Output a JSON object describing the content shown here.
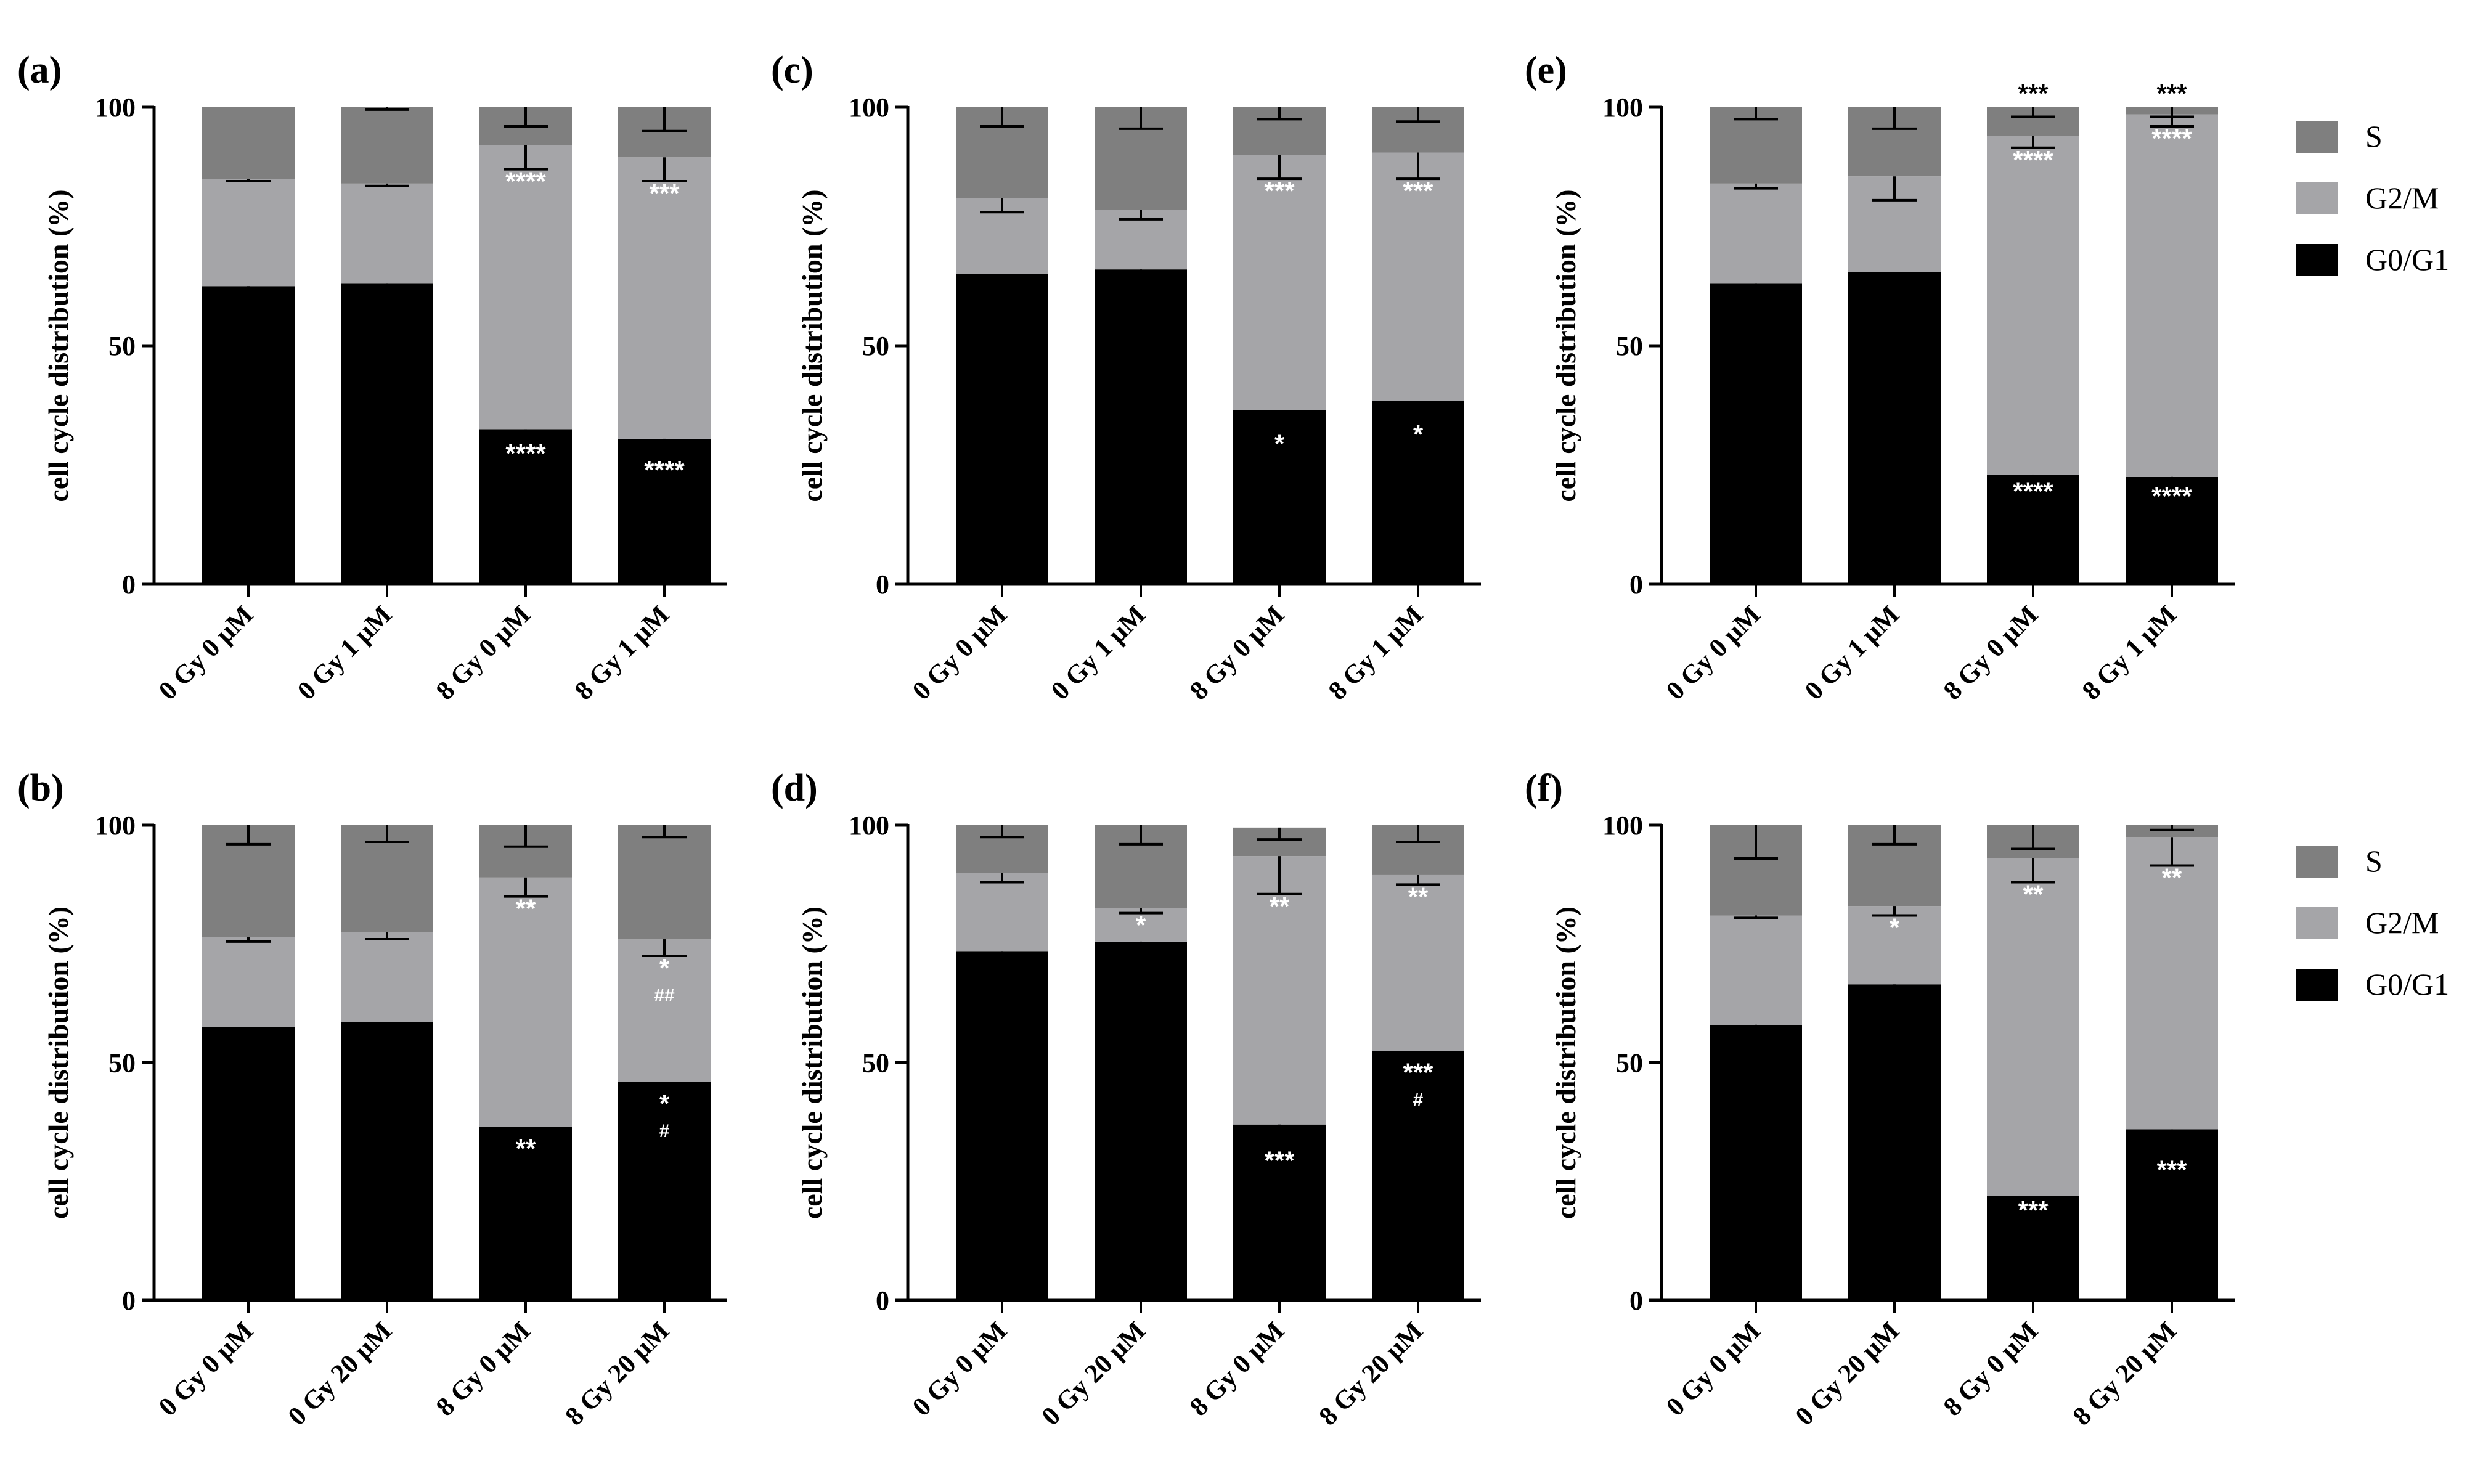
{
  "colors": {
    "S": "#7f7f7f",
    "G2M": "#a5a5a8",
    "G0G1": "#000000"
  },
  "legends": [
    {
      "entries": [
        {
          "key": "S",
          "label": "S"
        },
        {
          "key": "G2M",
          "label": "G2/M"
        },
        {
          "key": "G0G1",
          "label": "G0/G1"
        }
      ]
    },
    {
      "entries": [
        {
          "key": "S",
          "label": "S"
        },
        {
          "key": "G2M",
          "label": "G2/M"
        },
        {
          "key": "G0G1",
          "label": "G0/G1"
        }
      ]
    }
  ],
  "chart_data": [
    {
      "type": "bar",
      "stacked": true,
      "panel": "(a)",
      "ylabel": "cell cycle distribution (%)",
      "ylim": [
        0,
        100
      ],
      "yticks": [
        "0",
        "50",
        "100"
      ],
      "categories": [
        "0 Gy 0 μM",
        "0 Gy 1 μM",
        "8 Gy 0 μM",
        "8 Gy 1 μM"
      ],
      "series": [
        {
          "name": "G0/G1",
          "values": [
            62.5,
            63,
            32.5,
            30.5
          ],
          "err": [
            1,
            0.5,
            2.5,
            4
          ]
        },
        {
          "name": "G2/M",
          "values": [
            22.5,
            21,
            59.5,
            59
          ],
          "err": [
            0.5,
            0.5,
            5,
            5
          ]
        },
        {
          "name": "S",
          "values": [
            15,
            16,
            8,
            10.5
          ],
          "err": [
            0,
            0.5,
            4,
            5
          ]
        }
      ],
      "annotations": [
        {
          "bar": 2,
          "series": "G0/G1",
          "text": "****"
        },
        {
          "bar": 3,
          "series": "G0/G1",
          "text": "****"
        },
        {
          "bar": 2,
          "series": "G2/M",
          "text": "****"
        },
        {
          "bar": 3,
          "series": "G2/M",
          "text": "***"
        }
      ]
    },
    {
      "type": "bar",
      "stacked": true,
      "panel": "(b)",
      "ylabel": "cell cycle distribution (%)",
      "ylim": [
        0,
        100
      ],
      "yticks": [
        "0",
        "50",
        "100"
      ],
      "categories": [
        "0 Gy 0 μM",
        "0 Gy 20 μM",
        "8 Gy 0 μM",
        "8 Gy 20 μM"
      ],
      "series": [
        {
          "name": "G0/G1",
          "values": [
            57.5,
            58.5,
            36.5,
            46
          ],
          "err": [
            3,
            2.5,
            2,
            2
          ]
        },
        {
          "name": "G2/M",
          "values": [
            19,
            19,
            52.5,
            30
          ],
          "err": [
            1,
            1.5,
            4,
            3.5
          ]
        },
        {
          "name": "S",
          "values": [
            23.5,
            22.5,
            11,
            24
          ],
          "err": [
            4,
            3.5,
            4.5,
            2.5
          ]
        }
      ],
      "annotations": [
        {
          "bar": 2,
          "series": "G0/G1",
          "text": "**"
        },
        {
          "bar": 3,
          "series": "G0/G1",
          "text": "*"
        },
        {
          "bar": 3,
          "series": "G0/G1",
          "text": "#"
        },
        {
          "bar": 2,
          "series": "G2/M",
          "text": "**"
        },
        {
          "bar": 3,
          "series": "G2/M",
          "text": "*"
        },
        {
          "bar": 3,
          "series": "G2/M",
          "text": "##"
        }
      ]
    },
    {
      "type": "bar",
      "stacked": true,
      "panel": "(c)",
      "ylabel": "cell cycle distribution (%)",
      "ylim": [
        0,
        100
      ],
      "yticks": [
        "0",
        "50",
        "100"
      ],
      "categories": [
        "0 Gy 0 μM",
        "0 Gy 1 μM",
        "8 Gy 0 μM",
        "8 Gy 1 μM"
      ],
      "series": [
        {
          "name": "G0/G1",
          "values": [
            65,
            66,
            36.5,
            38.5
          ],
          "err": [
            8,
            6,
            4.5,
            4.5
          ]
        },
        {
          "name": "G2/M",
          "values": [
            16,
            12.5,
            53.5,
            52
          ],
          "err": [
            3,
            2,
            5,
            5.5
          ]
        },
        {
          "name": "S",
          "values": [
            19,
            21.5,
            10,
            9.5
          ],
          "err": [
            4,
            4.5,
            2.5,
            3
          ]
        }
      ],
      "annotations": [
        {
          "bar": 2,
          "series": "G0/G1",
          "text": "*"
        },
        {
          "bar": 3,
          "series": "G0/G1",
          "text": "*"
        },
        {
          "bar": 2,
          "series": "G2/M",
          "text": "***"
        },
        {
          "bar": 3,
          "series": "G2/M",
          "text": "***"
        }
      ]
    },
    {
      "type": "bar",
      "stacked": true,
      "panel": "(d)",
      "ylabel": "cell cycle distribution (%)",
      "ylim": [
        0,
        100
      ],
      "yticks": [
        "0",
        "50",
        "100"
      ],
      "categories": [
        "0 Gy 0 μM",
        "0 Gy 20 μM",
        "8 Gy 0 μM",
        "8 Gy 20 μM"
      ],
      "series": [
        {
          "name": "G0/G1",
          "values": [
            73.5,
            75.5,
            37,
            52.5
          ],
          "err": [
            2,
            3.5,
            5,
            2
          ]
        },
        {
          "name": "G2/M",
          "values": [
            16.5,
            7,
            56.5,
            37
          ],
          "err": [
            2,
            1,
            8,
            2
          ]
        },
        {
          "name": "S",
          "values": [
            10,
            17.5,
            6,
            10.5
          ],
          "err": [
            2.5,
            4,
            2.5,
            3.5
          ]
        }
      ],
      "annotations": [
        {
          "bar": 2,
          "series": "G0/G1",
          "text": "***"
        },
        {
          "bar": 3,
          "series": "G0/G1",
          "text": "***"
        },
        {
          "bar": 3,
          "series": "G0/G1",
          "text": "#"
        },
        {
          "bar": 1,
          "series": "G2/M",
          "text": "*"
        },
        {
          "bar": 2,
          "series": "G2/M",
          "text": "**"
        },
        {
          "bar": 3,
          "series": "G2/M",
          "text": "**"
        }
      ]
    },
    {
      "type": "bar",
      "stacked": true,
      "panel": "(e)",
      "ylabel": "cell cycle distribution (%)",
      "ylim": [
        0,
        100
      ],
      "yticks": [
        "0",
        "50",
        "100"
      ],
      "categories": [
        "0 Gy 0 μM",
        "0 Gy 1 μM",
        "8 Gy 0 μM",
        "8 Gy 1 μM"
      ],
      "series": [
        {
          "name": "G0/G1",
          "values": [
            63,
            65.5,
            23,
            22.5
          ],
          "err": [
            2.5,
            4,
            1,
            1.5
          ]
        },
        {
          "name": "G2/M",
          "values": [
            21,
            20,
            71,
            76
          ],
          "err": [
            1,
            5,
            2.5,
            2.5
          ]
        },
        {
          "name": "S",
          "values": [
            16,
            14.5,
            6,
            1.5
          ],
          "err": [
            2.5,
            4.5,
            2,
            2
          ]
        }
      ],
      "annotations": [
        {
          "bar": 2,
          "series": "G0/G1",
          "text": "****"
        },
        {
          "bar": 3,
          "series": "G0/G1",
          "text": "****"
        },
        {
          "bar": 2,
          "series": "G2/M",
          "text": "****"
        },
        {
          "bar": 3,
          "series": "G2/M",
          "text": "****"
        },
        {
          "bar": 2,
          "series": "S",
          "text": "***"
        },
        {
          "bar": 3,
          "series": "S",
          "text": "***"
        }
      ]
    },
    {
      "type": "bar",
      "stacked": true,
      "panel": "(f)",
      "ylabel": "cell cycle distribution (%)",
      "ylim": [
        0,
        100
      ],
      "yticks": [
        "0",
        "50",
        "100"
      ],
      "categories": [
        "0 Gy 0 μM",
        "0 Gy 20 μM",
        "8 Gy 0 μM",
        "8 Gy 20 μM"
      ],
      "series": [
        {
          "name": "G0/G1",
          "values": [
            58,
            66.5,
            22,
            36
          ],
          "err": [
            6,
            3.5,
            0.5,
            6
          ]
        },
        {
          "name": "G2/M",
          "values": [
            23,
            16.5,
            71,
            61.5
          ],
          "err": [
            0.5,
            2,
            5,
            6
          ]
        },
        {
          "name": "S",
          "values": [
            19,
            17,
            7,
            2.5
          ],
          "err": [
            7,
            4,
            5,
            1
          ]
        }
      ],
      "annotations": [
        {
          "bar": 2,
          "series": "G0/G1",
          "text": "***"
        },
        {
          "bar": 3,
          "series": "G0/G1",
          "text": "***"
        },
        {
          "bar": 1,
          "series": "G2/M",
          "text": "*"
        },
        {
          "bar": 2,
          "series": "G2/M",
          "text": "**"
        },
        {
          "bar": 3,
          "series": "G2/M",
          "text": "**"
        }
      ]
    }
  ]
}
